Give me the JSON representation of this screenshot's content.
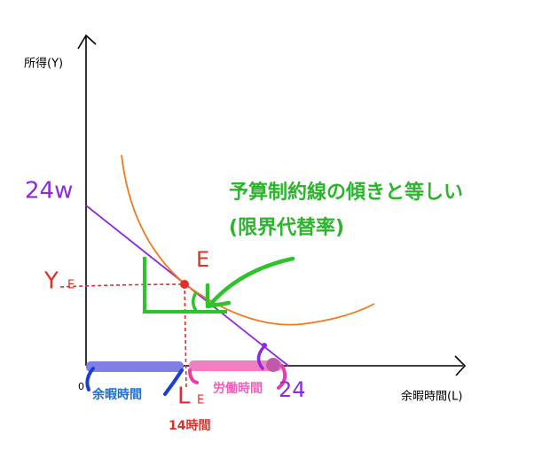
{
  "axes": {
    "y_label": "所得(Y)",
    "x_label": "余暇時間(L)",
    "origin": "0"
  },
  "points": {
    "y_intercept": "24w",
    "x_intercept": "24",
    "equilibrium": "E",
    "y_e_main": "Y",
    "y_e_sub": "E",
    "l_e_main": "L",
    "l_e_sub": "E",
    "l_e_value": "14時間"
  },
  "segments": {
    "leisure": "余暇時間",
    "labor": "労働時間"
  },
  "annotation": {
    "line1": "予算制約線の傾きと等しい",
    "line2": "(限界代替率)"
  }
}
